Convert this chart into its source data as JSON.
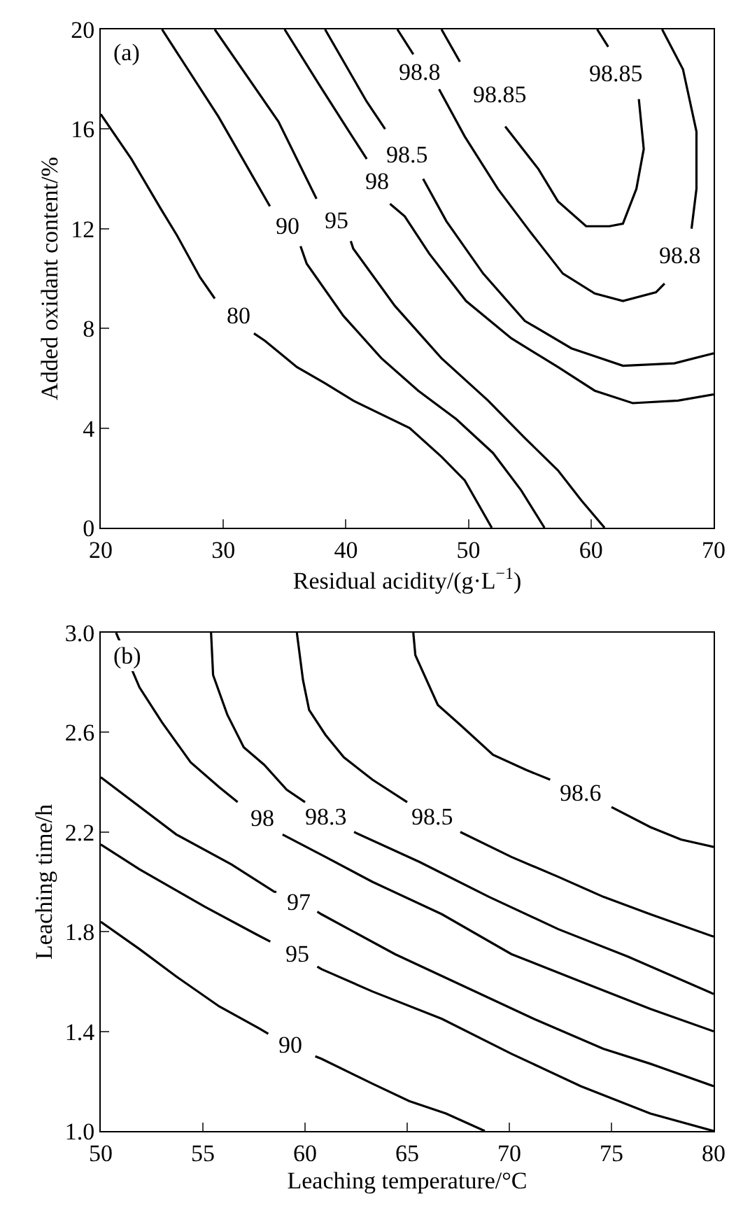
{
  "chart_data": [
    {
      "type": "line",
      "xlabel": "Residual acidity/(g·L$^{−1}$)",
      "ylabel": "Added oxidant content/%",
      "xlim": [
        20,
        70
      ],
      "ylim": [
        0,
        20
      ],
      "xticks": [
        20,
        30,
        40,
        50,
        60,
        70
      ],
      "yticks": [
        0,
        4,
        8,
        12,
        16,
        20
      ],
      "line_style": "solid",
      "annotations": [
        "(a)"
      ],
      "series": [
        {
          "name": "80",
          "color": "#000000",
          "x": [
            20,
            22.5,
            24.9,
            26.2,
            28.1,
            29.3,
            31.2,
            32.5,
            33.4,
            36.0,
            38.3,
            40.6,
            45.2,
            47.8,
            49.7,
            51.9
          ],
          "values": [
            16.6,
            14.8,
            12.8,
            11.75,
            10.05,
            9.2,
            null,
            7.8,
            7.5,
            6.45,
            5.8,
            5.1,
            4.0,
            2.85,
            1.9,
            0
          ]
        },
        {
          "name": "90",
          "color": "#000000",
          "x": [
            25.0,
            29.6,
            33.8,
            35.2,
            36.3,
            36.8,
            39.8,
            42.9,
            45.9,
            49.0,
            52.0,
            54.3,
            56.2
          ],
          "values": [
            20,
            16.5,
            12.9,
            null,
            11.3,
            10.6,
            8.5,
            6.8,
            5.5,
            4.36,
            3.0,
            1.5,
            0
          ]
        },
        {
          "name": "95",
          "color": "#000000",
          "x": [
            29.3,
            34.5,
            37.6,
            39.2,
            40.4,
            40.6,
            44.0,
            47.8,
            51.6,
            54.6,
            57.3,
            59.2,
            61.1
          ],
          "values": [
            20,
            16.3,
            13.2,
            null,
            11.5,
            11.2,
            8.9,
            6.8,
            5.1,
            3.6,
            2.3,
            1.1,
            0
          ]
        },
        {
          "name": "98",
          "color": "#000000",
          "x": [
            35.0,
            37.8,
            40.0,
            41.7,
            42.6,
            43.6,
            44.8,
            46.8,
            49.8,
            53.5,
            57.3,
            60.3,
            63.4,
            67.1,
            70
          ],
          "values": [
            20,
            17.8,
            16.1,
            14.8,
            null,
            13.0,
            12.5,
            11.0,
            9.1,
            7.6,
            6.45,
            5.5,
            5.0,
            5.1,
            5.35
          ]
        },
        {
          "name": "98.5",
          "color": "#000000",
          "x": [
            38.3,
            41.7,
            43.2,
            45.0,
            46.3,
            48.2,
            51.2,
            54.6,
            58.4,
            62.6,
            66.8,
            70
          ],
          "values": [
            20,
            17.1,
            16.0,
            null,
            14.0,
            12.3,
            10.2,
            8.3,
            7.2,
            6.5,
            6.6,
            7.0
          ]
        },
        {
          "name": "98.8",
          "color": "#000000",
          "x": [
            44.2,
            45.5,
            46.0,
            47.6,
            49.7,
            52.4,
            55.0,
            57.7,
            60.3,
            62.6,
            65.3,
            66.0,
            67.3,
            68.2,
            68.6,
            68.6,
            67.5,
            65.8
          ],
          "values": [
            20,
            19.0,
            null,
            17.6,
            15.7,
            13.6,
            11.9,
            10.2,
            9.4,
            9.1,
            9.45,
            9.8,
            null,
            12.0,
            13.6,
            15.9,
            18.4,
            20
          ]
        },
        {
          "name": "98.85",
          "color": "#000000",
          "x": [
            47.8,
            49.3,
            52.5,
            53.0,
            55.7,
            57.3,
            59.6,
            61.5,
            62.6,
            63.7,
            64.3,
            63.9,
            62.0,
            61.4,
            60.5
          ],
          "values": [
            20,
            18.7,
            null,
            16.1,
            14.4,
            13.1,
            12.1,
            12.1,
            12.2,
            13.6,
            15.2,
            17.2,
            null,
            19.3,
            20
          ]
        }
      ]
    },
    {
      "type": "line",
      "xlabel": "Leaching temperature/°C",
      "ylabel": "Leaching time/h",
      "xlim": [
        50,
        80
      ],
      "ylim": [
        1.0,
        3.0
      ],
      "xticks": [
        50,
        55,
        60,
        65,
        70,
        75,
        80
      ],
      "yticks": [
        {
          "value": 1.0,
          "label": "1.0"
        },
        1.4,
        1.8,
        2.2,
        2.6,
        {
          "value": 3.0,
          "label": "3.0"
        }
      ],
      "line_style": "solid",
      "annotations": [
        "(b)"
      ],
      "series": [
        {
          "name": "90",
          "color": "#000000",
          "x": [
            50,
            51.9,
            53.7,
            55.8,
            57.8,
            58.2,
            59.3,
            60.5,
            60.8,
            63.3,
            65.1,
            66.9,
            68.8
          ],
          "values": [
            1.84,
            1.73,
            1.62,
            1.5,
            1.41,
            1.39,
            null,
            1.3,
            1.29,
            1.19,
            1.12,
            1.07,
            1.0
          ]
        },
        {
          "name": "95",
          "color": "#000000",
          "x": [
            50,
            51.9,
            55.1,
            57.6,
            58.3,
            59.6,
            60.6,
            60.8,
            63.3,
            66.7,
            70.1,
            73.5,
            76.9,
            80
          ],
          "values": [
            2.15,
            2.05,
            1.9,
            1.79,
            1.76,
            null,
            1.66,
            1.65,
            1.56,
            1.45,
            1.31,
            1.18,
            1.07,
            1.0
          ]
        },
        {
          "name": "97",
          "color": "#000000",
          "x": [
            50,
            53.7,
            56.4,
            58.5,
            58.6,
            59.7,
            60.6,
            60.8,
            64.4,
            67.8,
            71.2,
            74.6,
            76.9,
            80
          ],
          "values": [
            2.42,
            2.19,
            2.07,
            1.96,
            1.96,
            null,
            1.88,
            1.87,
            1.71,
            1.58,
            1.45,
            1.33,
            1.27,
            1.18
          ]
        },
        {
          "name": "98",
          "color": "#000000",
          "x": [
            50.75,
            51.9,
            53.0,
            54.4,
            55.8,
            56.7,
            57.9,
            58.9,
            61.0,
            63.3,
            66.7,
            70.1,
            73.5,
            76.9,
            80
          ],
          "values": [
            3.0,
            2.78,
            2.64,
            2.48,
            2.38,
            2.32,
            null,
            2.19,
            2.1,
            2.0,
            1.87,
            1.71,
            1.6,
            1.49,
            1.4
          ]
        },
        {
          "name": "98.3",
          "color": "#000000",
          "x": [
            55.4,
            55.5,
            56.2,
            57.0,
            58.0,
            59.1,
            60.0,
            61.0,
            62.4,
            65.6,
            69.0,
            72.4,
            75.8,
            80
          ],
          "values": [
            3.0,
            2.83,
            2.67,
            2.54,
            2.47,
            2.37,
            2.32,
            null,
            2.2,
            2.08,
            1.94,
            1.81,
            1.7,
            1.55
          ]
        },
        {
          "name": "98.5",
          "color": "#000000",
          "x": [
            59.6,
            59.9,
            60.2,
            61.0,
            61.9,
            63.3,
            65.0,
            66.2,
            67.6,
            70.1,
            72.4,
            74.6,
            76.9,
            80
          ],
          "values": [
            3.0,
            2.81,
            2.69,
            2.59,
            2.5,
            2.41,
            2.32,
            null,
            2.2,
            2.1,
            2.02,
            1.94,
            1.87,
            1.78
          ]
        },
        {
          "name": "98.6",
          "color": "#000000",
          "x": [
            65.3,
            65.4,
            66.5,
            67.6,
            69.2,
            70.8,
            72.0,
            73.5,
            75.0,
            76.9,
            78.4,
            80
          ],
          "values": [
            3.0,
            2.91,
            2.71,
            2.63,
            2.51,
            2.45,
            2.41,
            null,
            2.3,
            2.22,
            2.17,
            2.14
          ]
        }
      ]
    }
  ]
}
